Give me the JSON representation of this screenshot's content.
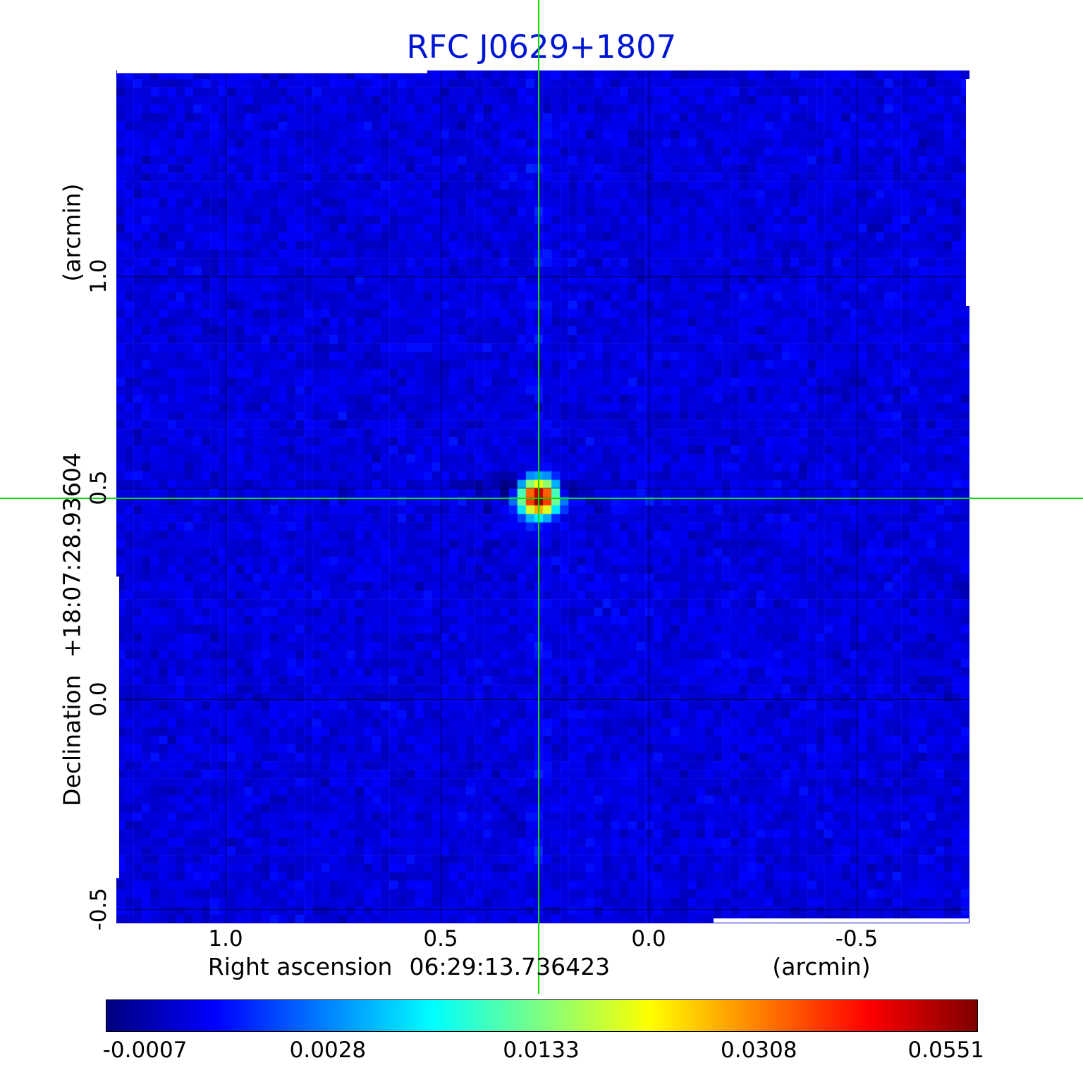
{
  "title": "RFC J0629+1807",
  "colors": {
    "title": "#0016d2",
    "crosshair": "#00dd00",
    "axis_text": "#000000"
  },
  "axes": {
    "x": {
      "label": "Right ascension",
      "value": "06:29:13.736423",
      "unit": "(arcmin)",
      "tick_labels": [
        "1.0",
        "0.5",
        "0.0",
        "-0.5"
      ]
    },
    "y": {
      "label": "Declination",
      "value": "+18:07:28.93604",
      "unit": "(arcmin)",
      "tick_labels": [
        "1.0",
        "0.5",
        "0.0",
        "-0.5"
      ]
    }
  },
  "colorbar": {
    "tick_labels": [
      "-0.0007",
      "0.0028",
      "0.0133",
      "0.0308",
      "0.0551"
    ]
  },
  "chart_data": {
    "type": "heatmap",
    "title": "RFC J0629+1807",
    "xlabel": "Right ascension 06:29:13.736423 (arcmin)",
    "ylabel": "Declination +18:07:28.93604 (arcmin)",
    "x_ticks_arcmin": [
      1.0,
      0.5,
      0.0,
      -0.5
    ],
    "y_ticks_arcmin": [
      1.0,
      0.5,
      0.0,
      -0.5
    ],
    "x_range_arcmin": [
      1.26,
      -0.77
    ],
    "y_range_arcmin": [
      1.49,
      -0.53
    ],
    "grid": true,
    "colormap": "jet",
    "value_scale_ticks": [
      -0.0007,
      0.0028,
      0.0133,
      0.0308,
      0.0551
    ],
    "value_range": [
      -0.0007,
      0.0551
    ],
    "source": {
      "x_arcmin": 0.255,
      "y_arcmin": 0.477,
      "peak_value": 0.0551,
      "marked_by_crosshair": true
    },
    "background": "blue noise field, values approx -0.0007 to 0.003 Jy/beam"
  }
}
